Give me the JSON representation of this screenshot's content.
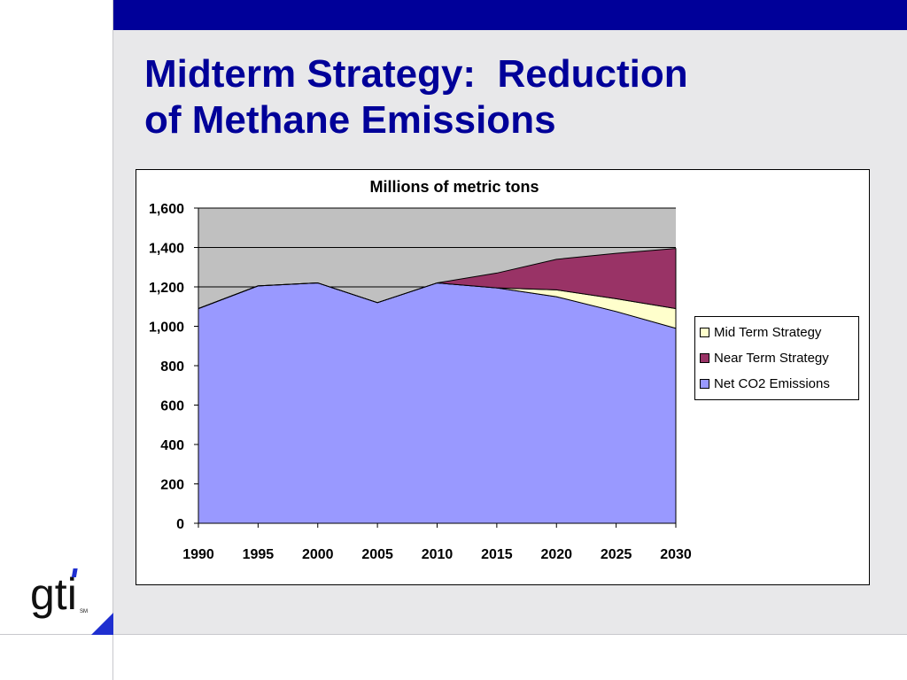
{
  "slide": {
    "title": "Midterm Strategy:  Reduction\nof Methane Emissions",
    "colors": {
      "top_bar": "#000099",
      "title": "#000099",
      "background": "#e8e8ea",
      "accent": "#1f2fd0"
    }
  },
  "logo": {
    "text": "gti",
    "mark": "SM",
    "icon": "gti-logo"
  },
  "chart_data": {
    "type": "area",
    "title": "Millions of metric tons",
    "x": [
      1990,
      1995,
      2000,
      2005,
      2010,
      2015,
      2020,
      2025,
      2030
    ],
    "xlabels": [
      "1990",
      "1995",
      "2000",
      "2005",
      "2010",
      "2015",
      "2020",
      "2025",
      "2030"
    ],
    "ylim": [
      0,
      1600
    ],
    "yticks": [
      0,
      200,
      400,
      600,
      800,
      1000,
      1200,
      1400,
      1600
    ],
    "ytick_labels": [
      "0",
      "200",
      "400",
      "600",
      "800",
      "1,000",
      "1,200",
      "1,400",
      "1,600"
    ],
    "stacked": true,
    "grid": true,
    "plot_background": "#c0c0c0",
    "legend_position": "right",
    "series": [
      {
        "name": "Net CO2 Emissions",
        "color": "#9999ff",
        "values": [
          1090,
          1205,
          1220,
          1120,
          1220,
          1195,
          1150,
          1075,
          990
        ]
      },
      {
        "name": "Mid Term Strategy",
        "color": "#ffffcc",
        "values": [
          0,
          0,
          0,
          0,
          0,
          0,
          35,
          65,
          100
        ]
      },
      {
        "name": "Near Term Strategy",
        "color": "#993366",
        "values": [
          0,
          0,
          0,
          0,
          0,
          75,
          155,
          230,
          305
        ]
      }
    ],
    "legend_order": [
      "Mid Term Strategy",
      "Near Term Strategy",
      "Net CO2 Emissions"
    ]
  }
}
